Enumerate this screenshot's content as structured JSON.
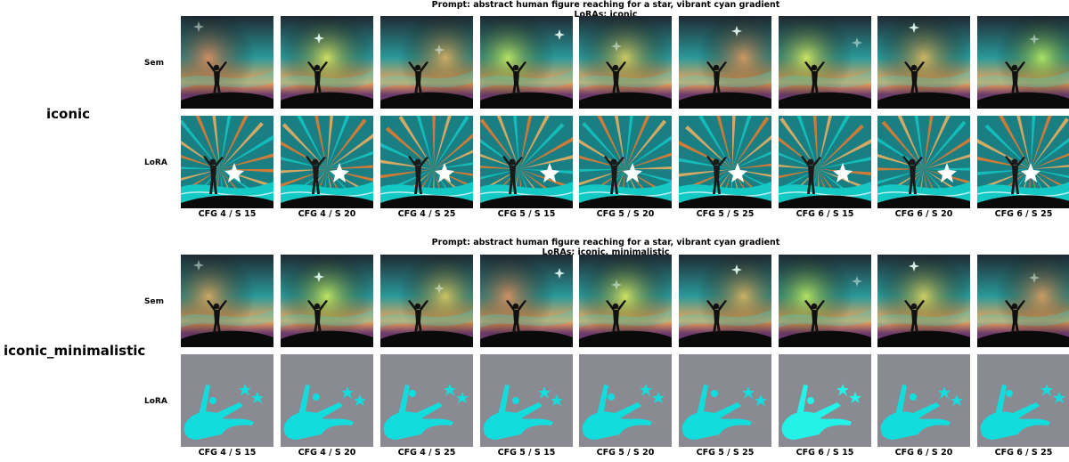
{
  "blocks": [
    {
      "group_label": "iconic",
      "prompt": "Prompt: abstract human figure reaching for a star, vibrant cyan gradient",
      "loras": "LoRAs: iconic",
      "row_labels": [
        "Sem",
        "LoRA"
      ]
    },
    {
      "group_label": "iconic_minimalistic",
      "prompt": "Prompt: abstract human figure reaching for a star, vibrant cyan gradient",
      "loras": "LoRAs: iconic, minimalistic",
      "row_labels": [
        "Sem",
        "LoRA"
      ]
    }
  ],
  "columns": [
    "CFG 4 / S 15",
    "CFG 4 / S 20",
    "CFG 4 / S 25",
    "CFG 5 / S 15",
    "CFG 5 / S 20",
    "CFG 5 / S 25",
    "CFG 6 / S 15",
    "CFG 6 / S 20",
    "CFG 6 / S 25"
  ],
  "colors": {
    "sky_top": "#1f2a33",
    "sky_teal": "#2a9a9a",
    "horizon_orange": "#f2a65a",
    "hill": "#0a0a0a",
    "lora_cyan": "#14c8c4",
    "lora_orange": "#f07a2c",
    "mini_bg": "#8a8a92",
    "mini_cyan": "#12dcdc"
  },
  "tile_styles": [
    "sem",
    "lora_burst",
    "sem",
    "minimal"
  ]
}
